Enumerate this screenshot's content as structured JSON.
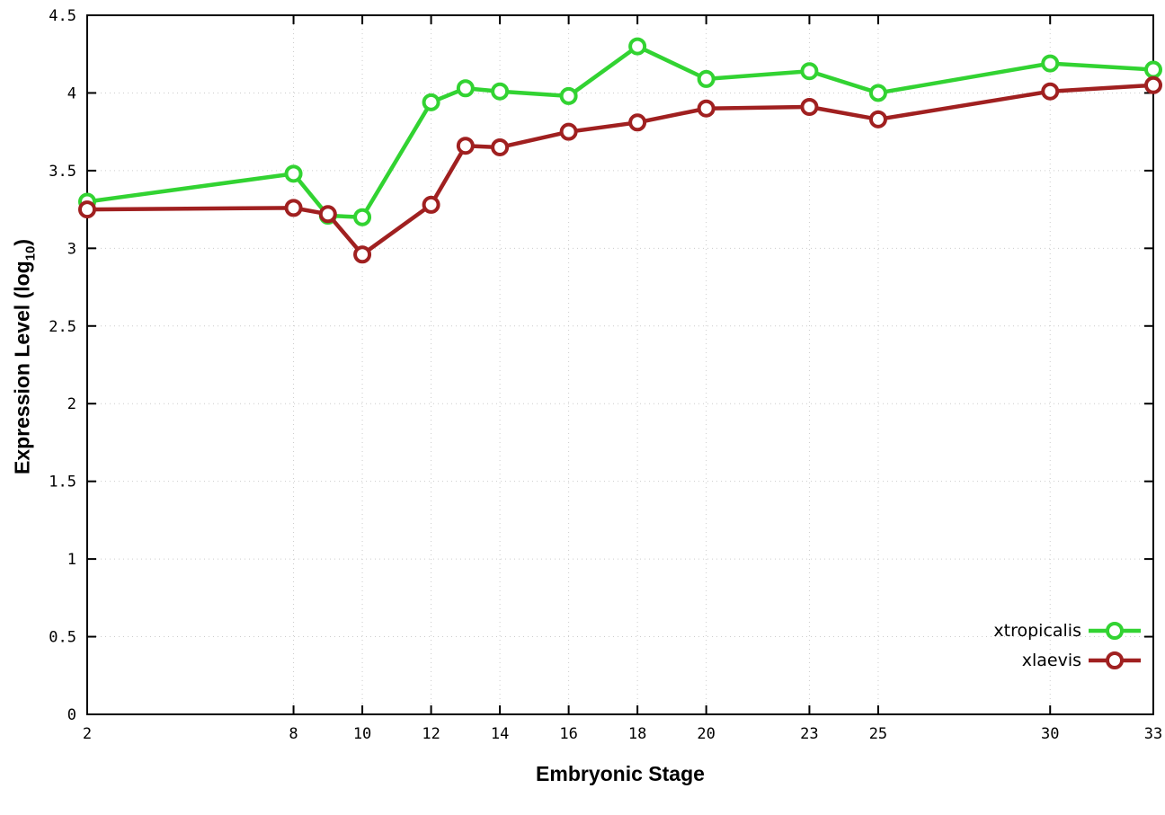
{
  "chart_data": {
    "type": "line",
    "title": "",
    "xlabel": "Embryonic Stage",
    "ylabel_prefix": "Expression Level (log",
    "ylabel_sub": "10",
    "ylabel_suffix": ")",
    "xlim": [
      2,
      33
    ],
    "ylim": [
      0,
      4.5
    ],
    "xticks": [
      2,
      8,
      10,
      12,
      14,
      16,
      18,
      20,
      23,
      25,
      30,
      33
    ],
    "xtick_labels": [
      "2",
      "8",
      "10",
      "12",
      "14",
      "16",
      "18",
      "20",
      "23",
      "25",
      "30",
      "33"
    ],
    "yticks": [
      0,
      0.5,
      1,
      1.5,
      2,
      2.5,
      3,
      3.5,
      4,
      4.5
    ],
    "ytick_labels": [
      "0",
      "0.5",
      "1",
      "1.5",
      "2",
      "2.5",
      "3",
      "3.5",
      "4",
      "4.5"
    ],
    "grid": true,
    "legend_position": "bottom-right",
    "x": [
      2,
      8,
      9,
      10,
      12,
      13,
      14,
      16,
      18,
      20,
      23,
      25,
      30,
      33
    ],
    "series": [
      {
        "name": "xtropicalis",
        "color": "#32d332",
        "values": [
          3.3,
          3.48,
          3.21,
          3.2,
          3.94,
          4.03,
          4.01,
          3.98,
          4.3,
          4.09,
          4.14,
          4.0,
          4.19,
          4.15
        ]
      },
      {
        "name": "xlaevis",
        "color": "#a02020",
        "values": [
          3.25,
          3.26,
          3.22,
          2.96,
          3.28,
          3.66,
          3.65,
          3.75,
          3.81,
          3.9,
          3.91,
          3.83,
          4.01,
          4.05
        ]
      }
    ],
    "colors": {
      "grid": "#cccccc",
      "axis": "#000000",
      "background": "#ffffff"
    }
  }
}
